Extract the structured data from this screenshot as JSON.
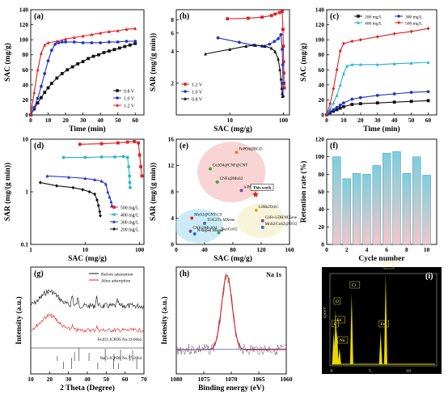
{
  "figure": {
    "panels": [
      {
        "id": "a",
        "tag": "(a)"
      },
      {
        "id": "b",
        "tag": "(b)"
      },
      {
        "id": "c",
        "tag": "(c)"
      },
      {
        "id": "d",
        "tag": "(d)"
      },
      {
        "id": "e",
        "tag": "(e)"
      },
      {
        "id": "f",
        "tag": "(f)"
      },
      {
        "id": "g",
        "tag": "(g)"
      },
      {
        "id": "h",
        "tag": "(h)"
      },
      {
        "id": "i",
        "tag": "(i)"
      }
    ]
  },
  "chart_data": [
    {
      "id": "a",
      "type": "line",
      "xlabel": "Time (min)",
      "ylabel": "SAC (mg/g)",
      "xlim": [
        0,
        65
      ],
      "ylim": [
        0,
        140
      ],
      "xticks": [
        "0",
        "10",
        "20",
        "30",
        "40",
        "50",
        "60"
      ],
      "yticks": [
        "0",
        "20",
        "40",
        "60",
        "80",
        "100",
        "120",
        "140"
      ],
      "legend_position": "lower-right",
      "series": [
        {
          "name": "0.8 V",
          "color": "#111111",
          "marker": "square",
          "x": [
            0,
            2,
            4,
            6,
            8,
            10,
            12,
            15,
            18,
            21,
            24,
            27,
            30,
            33,
            36,
            39,
            42,
            45,
            48,
            51,
            54,
            57,
            60
          ],
          "y": [
            0,
            8,
            16,
            23,
            30,
            36,
            42,
            49,
            55,
            60,
            64,
            68,
            71,
            75,
            78,
            80,
            83,
            85,
            87,
            89,
            91,
            93,
            95
          ]
        },
        {
          "name": "1.0 V",
          "color": "#2233cc",
          "marker": "circle",
          "x": [
            0,
            2,
            4,
            6,
            8,
            10,
            12,
            14,
            16,
            18,
            20,
            25,
            30,
            35,
            40,
            45,
            50,
            55,
            60
          ],
          "y": [
            0,
            10,
            22,
            38,
            55,
            72,
            86,
            94,
            96,
            97,
            97,
            97,
            96,
            96,
            96,
            97,
            97,
            98,
            98
          ]
        },
        {
          "name": "1.2 V",
          "color": "#e02020",
          "marker": "triangle",
          "x": [
            0,
            2,
            4,
            6,
            8,
            10,
            15,
            20,
            25,
            30,
            35,
            40,
            45,
            50,
            55,
            60
          ],
          "y": [
            0,
            30,
            60,
            82,
            93,
            96,
            98,
            101,
            103,
            105,
            107,
            109,
            111,
            112,
            114,
            115
          ]
        }
      ]
    },
    {
      "id": "b",
      "type": "line",
      "xlabel": "SAC (mg/g)",
      "ylabel": "SAR (mg/(g min))",
      "xscale": "log",
      "yscale": "log",
      "xlim": [
        1,
        130
      ],
      "ylim": [
        1,
        10
      ],
      "xticks": [
        "10",
        "100"
      ],
      "yticks": [
        "2",
        "4",
        "6",
        "8"
      ],
      "legend_position": "lower-left",
      "series": [
        {
          "name": "1.2 V",
          "color": "#e02020",
          "marker": "square",
          "x": [
            9,
            22,
            40,
            60,
            70,
            85,
            95,
            98,
            100,
            101,
            102,
            103,
            104
          ],
          "y": [
            8.2,
            8.3,
            8.5,
            8.8,
            9.1,
            9.4,
            9.6,
            6.5,
            4.5,
            3.2,
            2.5,
            2.0,
            1.8
          ]
        },
        {
          "name": "1.0 V",
          "color": "#2233cc",
          "marker": "circle",
          "x": [
            6,
            15,
            28,
            40,
            55,
            68,
            80,
            90,
            95,
            97,
            98,
            99
          ],
          "y": [
            5.4,
            4.9,
            4.6,
            4.5,
            4.7,
            5.0,
            5.3,
            5.8,
            4.2,
            3.0,
            2.0,
            1.5
          ]
        },
        {
          "name": "0.8 V",
          "color": "#111111",
          "marker": "triangle",
          "x": [
            3.5,
            10,
            20,
            30,
            45,
            60,
            70,
            80,
            86,
            90,
            93,
            95,
            96
          ],
          "y": [
            3.8,
            4.2,
            4.5,
            4.6,
            4.5,
            4.3,
            4.0,
            3.4,
            2.7,
            2.2,
            1.8,
            1.6,
            1.5
          ]
        }
      ]
    },
    {
      "id": "c",
      "type": "line",
      "xlabel": "Time (min)",
      "ylabel": "SAC (mg/g)",
      "xlim": [
        0,
        65
      ],
      "ylim": [
        0,
        140
      ],
      "xticks": [
        "0",
        "10",
        "20",
        "30",
        "40",
        "50",
        "60"
      ],
      "yticks": [
        "0",
        "20",
        "40",
        "60",
        "80",
        "100",
        "120",
        "140"
      ],
      "legend_position": "top-right",
      "series": [
        {
          "name": "200 mg/L",
          "color": "#111111",
          "marker": "square",
          "x": [
            0,
            2,
            4,
            6,
            8,
            10,
            15,
            20,
            30,
            40,
            50,
            60
          ],
          "y": [
            0,
            3,
            5,
            7,
            9,
            11,
            14,
            15,
            16,
            17,
            18,
            19
          ]
        },
        {
          "name": "300 mg/L",
          "color": "#2233cc",
          "marker": "circle",
          "x": [
            0,
            2,
            4,
            6,
            8,
            10,
            15,
            20,
            30,
            40,
            50,
            60
          ],
          "y": [
            0,
            4,
            7,
            10,
            13,
            16,
            21,
            23,
            26,
            28,
            30,
            31
          ]
        },
        {
          "name": "400 mg/L",
          "color": "#22b5d6",
          "marker": "triangle",
          "x": [
            0,
            2,
            4,
            6,
            8,
            10,
            12,
            15,
            20,
            30,
            40,
            50,
            60
          ],
          "y": [
            0,
            8,
            16,
            26,
            40,
            55,
            65,
            67,
            67,
            67,
            68,
            69,
            70
          ]
        },
        {
          "name": "500 mg/L",
          "color": "#e02020",
          "marker": "diamond",
          "x": [
            0,
            2,
            4,
            6,
            8,
            10,
            15,
            20,
            30,
            40,
            50,
            60
          ],
          "y": [
            0,
            15,
            35,
            60,
            85,
            95,
            98,
            100,
            104,
            108,
            111,
            115
          ]
        }
      ]
    },
    {
      "id": "d",
      "type": "line",
      "xlabel": "SAC (mg/g)",
      "ylabel": "SAR (mg/(g min))",
      "xscale": "log",
      "yscale": "log",
      "xlim": [
        1,
        120
      ],
      "ylim": [
        0.1,
        10
      ],
      "xticks": [
        "1",
        "10",
        "100"
      ],
      "yticks": [
        "0.1",
        "1",
        "10"
      ],
      "legend_position": "lower-right",
      "series": [
        {
          "name": "500 mg/L",
          "color": "#e02020",
          "marker": "square",
          "x": [
            8,
            20,
            40,
            60,
            80,
            95,
            100,
            105,
            110
          ],
          "y": [
            8.0,
            8.2,
            8.5,
            8.8,
            9.0,
            8.5,
            5.0,
            3.0,
            2.0
          ]
        },
        {
          "name": "400 mg/L",
          "color": "#22b5d6",
          "marker": "circle",
          "x": [
            4,
            10,
            20,
            35,
            50,
            60,
            63,
            65,
            66,
            67
          ],
          "y": [
            4.5,
            4.5,
            4.6,
            4.6,
            4.7,
            4.5,
            3.0,
            2.0,
            1.5,
            1.2
          ]
        },
        {
          "name": "300 mg/L",
          "color": "#2233cc",
          "marker": "triangle",
          "x": [
            2,
            5,
            10,
            15,
            20,
            24,
            26,
            28,
            30,
            31
          ],
          "y": [
            2.0,
            1.9,
            1.8,
            1.7,
            1.6,
            1.4,
            1.0,
            0.8,
            0.65,
            0.55
          ]
        },
        {
          "name": "200 mg/L",
          "color": "#111111",
          "marker": "diamond",
          "x": [
            1.5,
            3,
            6,
            9,
            12,
            15,
            16.5,
            17.5,
            18.5,
            19
          ],
          "y": [
            1.5,
            1.3,
            1.2,
            1.1,
            1.0,
            0.9,
            0.7,
            0.55,
            0.42,
            0.35
          ]
        }
      ]
    },
    {
      "id": "e",
      "type": "scatter",
      "xlabel": "SAC (mg/g)",
      "ylabel": "SAR (mg/(g min))",
      "xlim": [
        0,
        160
      ],
      "ylim": [
        0,
        16
      ],
      "xticks": [
        "0",
        "40",
        "80",
        "120",
        "160"
      ],
      "yticks": [
        "0",
        "4",
        "8",
        "12",
        "16"
      ],
      "points": [
        {
          "label": "FePO4@RGO",
          "x": 85,
          "y": 14,
          "color": "#e08030"
        },
        {
          "label": "Co3O4@CNF@CNT",
          "x": 48,
          "y": 11.5,
          "color": "#3aa84a"
        },
        {
          "label": "CNFs@MoS2",
          "x": 58,
          "y": 9.5,
          "color": "#3aa84a"
        },
        {
          "label": "h-PC",
          "x": 92,
          "y": 8.2,
          "color": "#8844aa"
        },
        {
          "label": "This work",
          "x": 112,
          "y": 7.6,
          "color": "#e01818"
        },
        {
          "label": "MoS2@CNT-CS",
          "x": 22,
          "y": 4.0,
          "color": "#d83030"
        },
        {
          "label": "Ti3C2Tx MXene",
          "x": 40,
          "y": 3.2,
          "color": "#2a70c8"
        },
        {
          "label": "CNF@Mn3O4",
          "x": 20,
          "y": 2.0,
          "color": "#8844aa"
        },
        {
          "label": "N-doped Mxene",
          "x": 26,
          "y": 1.6,
          "color": "#2a70c8"
        },
        {
          "label": "NaxCoO2",
          "x": 60,
          "y": 1.8,
          "color": "#3aa84a"
        },
        {
          "label": "LiMn2O4/C",
          "x": 113,
          "y": 5.2,
          "color": "#d8b020"
        },
        {
          "label": "CoFe-LDH/MXene",
          "x": 122,
          "y": 3.6,
          "color": "#8844aa"
        },
        {
          "label": "MnS2/CoS2@TiO2",
          "x": 122,
          "y": 2.6,
          "color": "#2a70c8"
        }
      ],
      "regions": [
        {
          "color": "#f4b8b8"
        },
        {
          "color": "#a8e0f0"
        },
        {
          "color": "#f4ecc0"
        }
      ]
    },
    {
      "id": "f",
      "type": "bar",
      "xlabel": "Cycle number",
      "ylabel": "Retention rate (%)",
      "categories": [
        "1",
        "2",
        "3",
        "4",
        "5",
        "6",
        "7",
        "8",
        "9",
        "10"
      ],
      "xticks": [
        "0",
        "2",
        "4",
        "6",
        "8",
        "10"
      ],
      "yticks": [
        "0",
        "20",
        "40",
        "60",
        "80",
        "100",
        "120"
      ],
      "ylim": [
        0,
        120
      ],
      "values": [
        100,
        75,
        81,
        80,
        90,
        104,
        106,
        81,
        100,
        79
      ]
    },
    {
      "id": "g",
      "type": "line",
      "xlabel": "2 Theta (Degree)",
      "ylabel": "Intensity (a.u.)",
      "xlim": [
        10,
        70
      ],
      "xticks": [
        "10",
        "20",
        "30",
        "40",
        "50",
        "60",
        "70"
      ],
      "legend_position": "top-right",
      "series": [
        {
          "name": "Before adsorption",
          "color": "#111111"
        },
        {
          "name": "After adsorption",
          "color": "#e02020"
        }
      ],
      "references": [
        {
          "name": "Fe2O3 JCPDS No.33-0664",
          "positions": [
            24.1,
            33.2,
            35.6,
            40.9,
            49.5,
            54.1,
            57.6,
            62.4,
            64.0
          ]
        },
        {
          "name": "NaCl JCPDS No.77-2064",
          "positions": [
            27.4,
            31.7,
            45.5,
            53.9,
            56.5,
            66.2
          ]
        }
      ]
    },
    {
      "id": "h",
      "type": "line",
      "title": "Na 1s",
      "xlabel": "Binding energy  (eV)",
      "ylabel": "Intensity (a.u.)",
      "xlim": [
        1080,
        1060
      ],
      "xticks": [
        "1080",
        "1075",
        "1070",
        "1065",
        "1060"
      ],
      "peak_center": 1070.8
    },
    {
      "id": "i",
      "type": "line",
      "ylabel": "cps/eV",
      "xticks": [
        "0",
        "5",
        "10"
      ],
      "peaks": [
        {
          "label": "C",
          "energy": 0.28
        },
        {
          "label": "O",
          "energy": 0.52
        },
        {
          "label": "Fe",
          "energy": 0.7
        },
        {
          "label": "Na",
          "energy": 1.04
        },
        {
          "label": "Cl",
          "energy": 2.62
        },
        {
          "label": "Fe",
          "energy": 6.4
        },
        {
          "label": "Fe",
          "energy": 7.06
        }
      ]
    }
  ]
}
